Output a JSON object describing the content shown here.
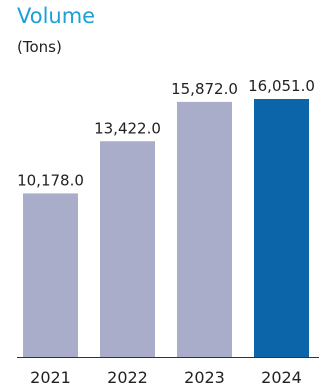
{
  "header": {
    "title": "Volume",
    "unit": "(Tons)"
  },
  "colors": {
    "title": "#1ba1d8",
    "bar_past": "#a9adc9",
    "bar_highlight": "#0d65a9",
    "text": "#222222",
    "axis": "#333333"
  },
  "chart_data": {
    "type": "bar",
    "categories": [
      "2021",
      "2022",
      "2023",
      "2024"
    ],
    "values": [
      10178.0,
      13422.0,
      15872.0,
      16051.0
    ],
    "value_labels": [
      "10,178.0",
      "13,422.0",
      "15,872.0",
      "16,051.0"
    ],
    "highlight_index": 3,
    "title": "Volume",
    "subtitle": "(Tons)",
    "xlabel": "",
    "ylabel": "",
    "ylim": [
      0,
      16051
    ],
    "grid": false,
    "legend": "none"
  }
}
